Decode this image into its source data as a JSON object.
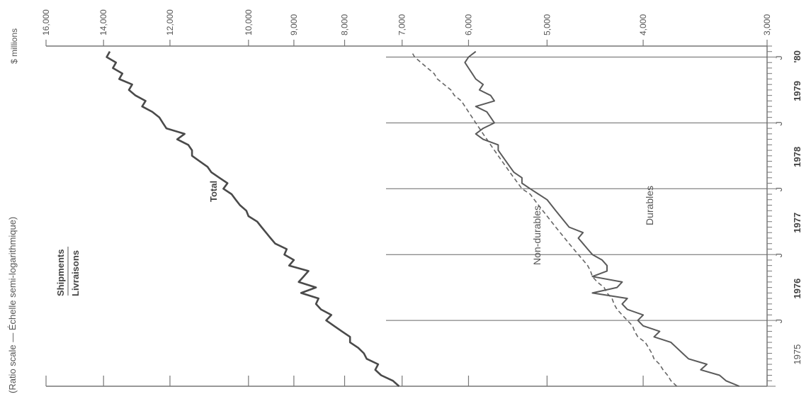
{
  "chart_data": {
    "type": "line",
    "scale_note": "(Ratio scale — Échelle semi-logarithmique)",
    "title": "Shipments",
    "title_fr": "Livraisons",
    "value_unit": "$ millions",
    "y_scale": "log",
    "ylim": [
      3000,
      16000
    ],
    "y_ticks": [
      {
        "value": 16000,
        "label": "16,000"
      },
      {
        "value": 14000,
        "label": "14,000"
      },
      {
        "value": 12000,
        "label": "12,000"
      },
      {
        "value": 10000,
        "label": "10,000"
      },
      {
        "value": 9000,
        "label": "9,000"
      },
      {
        "value": 8000,
        "label": "8,000"
      },
      {
        "value": 7000,
        "label": "7,000"
      },
      {
        "value": 6000,
        "label": "6,000"
      },
      {
        "value": 5000,
        "label": "5,000"
      },
      {
        "value": 4000,
        "label": "4,000"
      },
      {
        "value": 3000,
        "label": "3,000"
      }
    ],
    "xlim": [
      "1975-01",
      "1980-03"
    ],
    "year_labels": [
      {
        "x": "1975-07",
        "label": "1975"
      },
      {
        "x": "1976-07",
        "label": "1976"
      },
      {
        "x": "1977-07",
        "label": "1977"
      },
      {
        "x": "1978-07",
        "label": "1978"
      },
      {
        "x": "1979-07",
        "label": "1979"
      },
      {
        "x": "1980-02",
        "label": "'80"
      }
    ],
    "month_markers": [
      {
        "x": "1976-01",
        "label": "J"
      },
      {
        "x": "1977-01",
        "label": "J"
      },
      {
        "x": "1978-01",
        "label": "J"
      },
      {
        "x": "1979-01",
        "label": "J"
      },
      {
        "x": "1980-01",
        "label": "J"
      }
    ],
    "x": [
      "1975-01",
      "1975-02",
      "1975-03",
      "1975-04",
      "1975-05",
      "1975-06",
      "1975-07",
      "1975-08",
      "1975-09",
      "1975-10",
      "1975-11",
      "1975-12",
      "1976-01",
      "1976-02",
      "1976-03",
      "1976-04",
      "1976-05",
      "1976-06",
      "1976-07",
      "1976-08",
      "1976-09",
      "1976-10",
      "1976-11",
      "1976-12",
      "1977-01",
      "1977-02",
      "1977-03",
      "1977-04",
      "1977-05",
      "1977-06",
      "1977-07",
      "1977-08",
      "1977-09",
      "1977-10",
      "1977-11",
      "1977-12",
      "1978-01",
      "1978-02",
      "1978-03",
      "1978-04",
      "1978-05",
      "1978-06",
      "1978-07",
      "1978-08",
      "1978-09",
      "1978-10",
      "1978-11",
      "1978-12",
      "1979-01",
      "1979-02",
      "1979-03",
      "1979-04",
      "1979-05",
      "1979-06",
      "1979-07",
      "1979-08",
      "1979-09",
      "1979-10",
      "1979-11",
      "1979-12",
      "1980-01",
      "1980-02"
    ],
    "series": [
      {
        "name": "Total",
        "style": "solid",
        "values": [
          7050,
          7150,
          7350,
          7450,
          7400,
          7600,
          7650,
          7750,
          7900,
          7900,
          8050,
          8200,
          8350,
          8250,
          8450,
          8550,
          8500,
          8850,
          8550,
          8900,
          8800,
          8700,
          9100,
          9000,
          9200,
          9150,
          9400,
          9500,
          9600,
          9700,
          9800,
          10000,
          10050,
          10200,
          10300,
          10400,
          10600,
          10500,
          10700,
          10900,
          11000,
          11200,
          11400,
          11400,
          11500,
          11800,
          11600,
          12100,
          12200,
          12300,
          12500,
          12800,
          12700,
          13000,
          13200,
          13100,
          13500,
          13400,
          13700,
          13600,
          13900,
          13800
        ]
      },
      {
        "name": "Non-durables",
        "style": "dashed",
        "values": [
          3700,
          3750,
          3780,
          3820,
          3850,
          3900,
          3920,
          3950,
          3980,
          4050,
          4080,
          4100,
          4150,
          4200,
          4250,
          4280,
          4300,
          4350,
          4380,
          4450,
          4500,
          4520,
          4550,
          4600,
          4650,
          4700,
          4750,
          4800,
          4850,
          4900,
          4950,
          5000,
          5050,
          5100,
          5150,
          5200,
          5300,
          5350,
          5400,
          5450,
          5500,
          5550,
          5600,
          5650,
          5700,
          5750,
          5800,
          5850,
          5900,
          5950,
          6000,
          6050,
          6100,
          6200,
          6250,
          6350,
          6450,
          6500,
          6600,
          6700,
          6800,
          6850
        ]
      },
      {
        "name": "Durables",
        "style": "solid",
        "values": [
          3200,
          3300,
          3350,
          3500,
          3450,
          3600,
          3650,
          3700,
          3750,
          3900,
          3850,
          4000,
          4050,
          4000,
          4150,
          4200,
          4150,
          4500,
          4250,
          4200,
          4500,
          4350,
          4350,
          4400,
          4500,
          4550,
          4600,
          4650,
          4600,
          4750,
          4800,
          4850,
          4900,
          4950,
          5000,
          5100,
          5200,
          5300,
          5300,
          5400,
          5450,
          5500,
          5550,
          5600,
          5600,
          5800,
          5900,
          5800,
          5650,
          5700,
          5750,
          5900,
          5650,
          5700,
          5850,
          5800,
          5900,
          5950,
          6000,
          6050,
          6000,
          5900
        ]
      }
    ]
  }
}
